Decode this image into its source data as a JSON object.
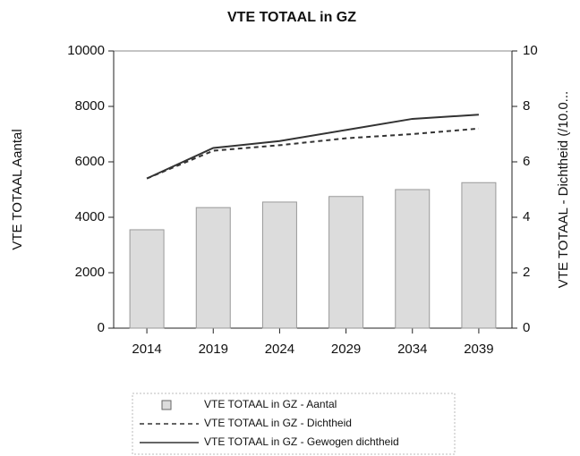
{
  "chart_data": {
    "type": "combo",
    "title": "VTE TOTAAL in GZ",
    "ylabel": "VTE TOTAAL Aantal",
    "y2label": "VTE TOTAAL - Dichtheid (/10.0...",
    "categories": [
      "2014",
      "2019",
      "2024",
      "2029",
      "2034",
      "2039"
    ],
    "series": [
      {
        "name": "VTE TOTAAL in GZ - Aantal",
        "type": "bar",
        "color": "#dcdcdc",
        "values": [
          3550,
          4350,
          4550,
          4750,
          5000,
          5250
        ]
      },
      {
        "name": "VTE TOTAAL in GZ - Dichtheid",
        "type": "line",
        "dashed": true,
        "axis": "y2",
        "color": "#333333",
        "values": [
          5.4,
          6.4,
          6.6,
          6.85,
          7.0,
          7.2
        ]
      },
      {
        "name": "VTE TOTAAL in GZ - Gewogen dichtheid",
        "type": "line",
        "dashed": false,
        "axis": "y2",
        "color": "#333333",
        "values": [
          5.4,
          6.5,
          6.75,
          7.15,
          7.55,
          7.7
        ]
      }
    ],
    "ylim": [
      0,
      10000
    ],
    "yticks": [
      0,
      2000,
      4000,
      6000,
      8000,
      10000
    ],
    "y2lim": [
      0,
      10
    ],
    "y2ticks": [
      0,
      2,
      4,
      6,
      8,
      10
    ],
    "legend": "bottom"
  }
}
